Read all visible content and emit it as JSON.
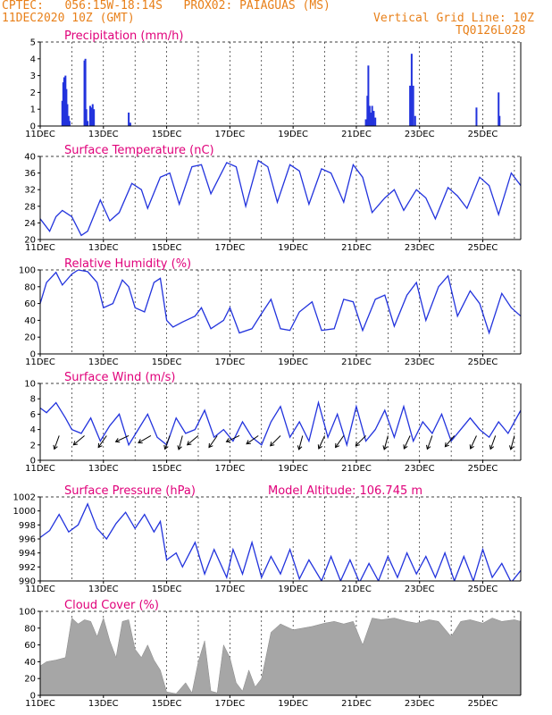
{
  "header": {
    "line1_left": "CPTEC:   056:15W-18:14S   PROX02: PAIAGUAS (MS)",
    "line2_left": "11DEC2020 10Z (GMT)",
    "line2_right": "Vertical Grid Line: 10Z",
    "line3_right": "TQ0126L028"
  },
  "colors": {
    "header": "#e8801a",
    "panel_title": "#e0007a",
    "series": "#2233dd",
    "wind_arrow": "#000000",
    "cloud": "#a6a6a6"
  },
  "chart_data": [
    {
      "type": "bar",
      "title": "Precipitation (mm/h)",
      "x_ticks": [
        "11DEC",
        "13DEC",
        "15DEC",
        "17DEC",
        "19DEC",
        "21DEC",
        "23DEC",
        "25DEC"
      ],
      "x_day_range": [
        11,
        26.2
      ],
      "ylim": [
        0,
        5
      ],
      "y_ticks": [
        0,
        1,
        2,
        3,
        4,
        5
      ],
      "points": [
        [
          11.7,
          1.5
        ],
        [
          11.73,
          2.6
        ],
        [
          11.76,
          2.9
        ],
        [
          11.8,
          3.0
        ],
        [
          11.83,
          2.2
        ],
        [
          11.86,
          1.3
        ],
        [
          11.9,
          0.6
        ],
        [
          11.93,
          0.3
        ],
        [
          12.4,
          3.9
        ],
        [
          12.43,
          4.0
        ],
        [
          12.46,
          1.0
        ],
        [
          12.5,
          0.3
        ],
        [
          12.58,
          1.2
        ],
        [
          12.62,
          1.1
        ],
        [
          12.66,
          1.3
        ],
        [
          12.7,
          1.0
        ],
        [
          13.8,
          0.8
        ],
        [
          13.85,
          0.2
        ],
        [
          21.3,
          0.4
        ],
        [
          21.35,
          1.8
        ],
        [
          21.38,
          3.6
        ],
        [
          21.42,
          1.2
        ],
        [
          21.46,
          0.8
        ],
        [
          21.5,
          1.2
        ],
        [
          21.55,
          0.9
        ],
        [
          21.6,
          0.5
        ],
        [
          22.7,
          2.4
        ],
        [
          22.75,
          4.3
        ],
        [
          22.8,
          2.4
        ],
        [
          22.86,
          0.6
        ],
        [
          24.8,
          1.1
        ],
        [
          25.5,
          2.0
        ],
        [
          25.53,
          0.6
        ]
      ]
    },
    {
      "type": "line",
      "title": "Surface Temperature (nC)",
      "ylim": [
        20,
        40
      ],
      "y_ticks": [
        20,
        24,
        28,
        32,
        36,
        40
      ],
      "points": [
        [
          11,
          25
        ],
        [
          11.3,
          22
        ],
        [
          11.5,
          25.5
        ],
        [
          11.7,
          27
        ],
        [
          12,
          25.5
        ],
        [
          12.3,
          21
        ],
        [
          12.5,
          22
        ],
        [
          12.9,
          29.5
        ],
        [
          13.2,
          24.5
        ],
        [
          13.5,
          26.5
        ],
        [
          13.9,
          33.5
        ],
        [
          14.2,
          32
        ],
        [
          14.4,
          27.5
        ],
        [
          14.8,
          35
        ],
        [
          15.1,
          36
        ],
        [
          15.4,
          28.5
        ],
        [
          15.8,
          37.5
        ],
        [
          16.1,
          38
        ],
        [
          16.4,
          31
        ],
        [
          16.9,
          38.5
        ],
        [
          17.2,
          37.5
        ],
        [
          17.5,
          28
        ],
        [
          17.9,
          39
        ],
        [
          18.2,
          37.5
        ],
        [
          18.5,
          29
        ],
        [
          18.9,
          38
        ],
        [
          19.2,
          36.5
        ],
        [
          19.5,
          28.5
        ],
        [
          19.9,
          37
        ],
        [
          20.2,
          36
        ],
        [
          20.6,
          29
        ],
        [
          20.9,
          38
        ],
        [
          21.2,
          35
        ],
        [
          21.5,
          26.5
        ],
        [
          21.9,
          30
        ],
        [
          22.2,
          32
        ],
        [
          22.5,
          27
        ],
        [
          22.9,
          32
        ],
        [
          23.2,
          30
        ],
        [
          23.5,
          25
        ],
        [
          23.9,
          32.5
        ],
        [
          24.2,
          30.5
        ],
        [
          24.5,
          27.5
        ],
        [
          24.9,
          35
        ],
        [
          25.2,
          33
        ],
        [
          25.5,
          26
        ],
        [
          25.9,
          36
        ],
        [
          26.2,
          33
        ]
      ]
    },
    {
      "type": "line",
      "title": "Relative Humidity (%)",
      "ylim": [
        0,
        100
      ],
      "y_ticks": [
        0,
        20,
        40,
        60,
        80,
        100
      ],
      "points": [
        [
          11,
          60
        ],
        [
          11.2,
          85
        ],
        [
          11.5,
          97
        ],
        [
          11.7,
          82
        ],
        [
          12,
          95
        ],
        [
          12.2,
          100
        ],
        [
          12.5,
          98
        ],
        [
          12.8,
          85
        ],
        [
          13,
          55
        ],
        [
          13.3,
          60
        ],
        [
          13.6,
          88
        ],
        [
          13.8,
          80
        ],
        [
          14,
          55
        ],
        [
          14.3,
          50
        ],
        [
          14.6,
          85
        ],
        [
          14.8,
          90
        ],
        [
          15,
          40
        ],
        [
          15.2,
          32
        ],
        [
          15.5,
          38
        ],
        [
          15.9,
          45
        ],
        [
          16.1,
          55
        ],
        [
          16.4,
          30
        ],
        [
          16.8,
          40
        ],
        [
          17,
          55
        ],
        [
          17.3,
          25
        ],
        [
          17.7,
          30
        ],
        [
          18,
          48
        ],
        [
          18.3,
          65
        ],
        [
          18.6,
          30
        ],
        [
          18.9,
          28
        ],
        [
          19.2,
          50
        ],
        [
          19.6,
          62
        ],
        [
          19.9,
          28
        ],
        [
          20.3,
          30
        ],
        [
          20.6,
          65
        ],
        [
          20.9,
          62
        ],
        [
          21.2,
          28
        ],
        [
          21.6,
          65
        ],
        [
          21.9,
          70
        ],
        [
          22.2,
          33
        ],
        [
          22.6,
          70
        ],
        [
          22.9,
          85
        ],
        [
          23.2,
          40
        ],
        [
          23.6,
          80
        ],
        [
          23.9,
          93
        ],
        [
          24.2,
          45
        ],
        [
          24.6,
          75
        ],
        [
          24.9,
          60
        ],
        [
          25.2,
          25
        ],
        [
          25.6,
          72
        ],
        [
          25.9,
          55
        ],
        [
          26.2,
          45
        ]
      ]
    },
    {
      "type": "line",
      "title": "Surface Wind (m/s)",
      "ylim": [
        0,
        10
      ],
      "y_ticks": [
        0,
        2,
        4,
        6,
        8,
        10
      ],
      "points": [
        [
          11,
          6.8
        ],
        [
          11.2,
          6.2
        ],
        [
          11.5,
          7.5
        ],
        [
          11.8,
          5.5
        ],
        [
          12,
          4
        ],
        [
          12.3,
          3.5
        ],
        [
          12.6,
          5.5
        ],
        [
          12.9,
          2.5
        ],
        [
          13.2,
          4.5
        ],
        [
          13.5,
          6
        ],
        [
          13.8,
          2
        ],
        [
          14.1,
          4
        ],
        [
          14.4,
          6
        ],
        [
          14.7,
          3
        ],
        [
          15,
          2
        ],
        [
          15.3,
          5.5
        ],
        [
          15.6,
          3.5
        ],
        [
          15.9,
          4
        ],
        [
          16.2,
          6.5
        ],
        [
          16.5,
          3
        ],
        [
          16.8,
          4
        ],
        [
          17.1,
          2.5
        ],
        [
          17.4,
          5
        ],
        [
          17.7,
          3
        ],
        [
          18,
          2
        ],
        [
          18.3,
          5
        ],
        [
          18.6,
          7
        ],
        [
          18.9,
          3
        ],
        [
          19.2,
          5
        ],
        [
          19.5,
          2.5
        ],
        [
          19.8,
          7.5
        ],
        [
          20.1,
          3
        ],
        [
          20.4,
          6
        ],
        [
          20.7,
          2
        ],
        [
          21,
          7
        ],
        [
          21.3,
          2.5
        ],
        [
          21.6,
          4
        ],
        [
          21.9,
          6.5
        ],
        [
          22.2,
          3
        ],
        [
          22.5,
          7
        ],
        [
          22.8,
          2.5
        ],
        [
          23.1,
          5
        ],
        [
          23.4,
          3.5
        ],
        [
          23.7,
          6
        ],
        [
          24,
          2.5
        ],
        [
          24.3,
          4
        ],
        [
          24.6,
          5.5
        ],
        [
          24.9,
          4
        ],
        [
          25.2,
          3
        ],
        [
          25.5,
          5
        ],
        [
          25.8,
          3.5
        ],
        [
          26.2,
          6.5
        ]
      ],
      "arrows": [
        [
          11.6,
          200
        ],
        [
          12.4,
          230
        ],
        [
          13.1,
          215
        ],
        [
          13.8,
          245
        ],
        [
          14.5,
          240
        ],
        [
          15.1,
          200
        ],
        [
          15.5,
          195
        ],
        [
          16.0,
          230
        ],
        [
          16.6,
          215
        ],
        [
          17.3,
          245
        ],
        [
          17.9,
          235
        ],
        [
          18.6,
          225
        ],
        [
          19.3,
          195
        ],
        [
          20.0,
          205
        ],
        [
          20.6,
          215
        ],
        [
          21.3,
          225
        ],
        [
          22.0,
          195
        ],
        [
          22.7,
          205
        ],
        [
          23.4,
          200
        ],
        [
          24.1,
          220
        ],
        [
          24.8,
          205
        ],
        [
          25.4,
          200
        ],
        [
          26.0,
          195
        ]
      ]
    },
    {
      "type": "line",
      "title": "Surface Pressure (hPa)",
      "annotation": "Model Altitude: 106.745 m",
      "ylim": [
        990,
        1002
      ],
      "y_ticks": [
        990,
        992,
        994,
        996,
        998,
        1000,
        1002
      ],
      "points": [
        [
          11,
          996.2
        ],
        [
          11.3,
          997.2
        ],
        [
          11.6,
          999.5
        ],
        [
          11.9,
          997
        ],
        [
          12.2,
          998
        ],
        [
          12.5,
          1001
        ],
        [
          12.8,
          997.5
        ],
        [
          13.1,
          996
        ],
        [
          13.4,
          998.2
        ],
        [
          13.7,
          999.8
        ],
        [
          14,
          997.5
        ],
        [
          14.3,
          999.5
        ],
        [
          14.6,
          997
        ],
        [
          14.8,
          998.5
        ],
        [
          15,
          993
        ],
        [
          15.3,
          994
        ],
        [
          15.5,
          992
        ],
        [
          15.9,
          995.5
        ],
        [
          16.2,
          991
        ],
        [
          16.5,
          994.5
        ],
        [
          16.9,
          990.5
        ],
        [
          17.1,
          994.5
        ],
        [
          17.4,
          991
        ],
        [
          17.7,
          995.5
        ],
        [
          18,
          990.5
        ],
        [
          18.3,
          993.5
        ],
        [
          18.6,
          991
        ],
        [
          18.9,
          994.5
        ],
        [
          19.2,
          990.3
        ],
        [
          19.5,
          993
        ],
        [
          19.9,
          990
        ],
        [
          20.2,
          993.5
        ],
        [
          20.5,
          990
        ],
        [
          20.8,
          993
        ],
        [
          21.1,
          989.8
        ],
        [
          21.4,
          992.5
        ],
        [
          21.7,
          990
        ],
        [
          22,
          993.5
        ],
        [
          22.3,
          990.5
        ],
        [
          22.6,
          994
        ],
        [
          22.9,
          991
        ],
        [
          23.2,
          993.5
        ],
        [
          23.5,
          990.5
        ],
        [
          23.8,
          994
        ],
        [
          24.1,
          990
        ],
        [
          24.4,
          993.5
        ],
        [
          24.7,
          990
        ],
        [
          25.0,
          994.5
        ],
        [
          25.3,
          990.5
        ],
        [
          25.6,
          992.5
        ],
        [
          25.9,
          989.8
        ],
        [
          26.2,
          991.5
        ]
      ]
    },
    {
      "type": "area",
      "title": "Cloud Cover (%)",
      "ylim": [
        0,
        100
      ],
      "y_ticks": [
        0,
        20,
        40,
        60,
        80,
        100
      ],
      "points": [
        [
          11,
          35
        ],
        [
          11.2,
          40
        ],
        [
          11.5,
          42
        ],
        [
          11.8,
          45
        ],
        [
          12,
          92
        ],
        [
          12.2,
          85
        ],
        [
          12.4,
          90
        ],
        [
          12.6,
          88
        ],
        [
          12.8,
          70
        ],
        [
          13,
          92
        ],
        [
          13.2,
          65
        ],
        [
          13.4,
          45
        ],
        [
          13.6,
          88
        ],
        [
          13.8,
          90
        ],
        [
          14,
          55
        ],
        [
          14.2,
          45
        ],
        [
          14.4,
          60
        ],
        [
          14.6,
          42
        ],
        [
          14.8,
          30
        ],
        [
          15,
          4
        ],
        [
          15.3,
          2
        ],
        [
          15.6,
          15
        ],
        [
          15.8,
          3
        ],
        [
          16,
          40
        ],
        [
          16.2,
          65
        ],
        [
          16.4,
          5
        ],
        [
          16.6,
          3
        ],
        [
          16.8,
          60
        ],
        [
          17,
          45
        ],
        [
          17.2,
          15
        ],
        [
          17.4,
          5
        ],
        [
          17.6,
          30
        ],
        [
          17.8,
          10
        ],
        [
          18,
          20
        ],
        [
          18.3,
          75
        ],
        [
          18.6,
          85
        ],
        [
          19,
          78
        ],
        [
          19.3,
          80
        ],
        [
          19.6,
          82
        ],
        [
          20,
          86
        ],
        [
          20.3,
          88
        ],
        [
          20.6,
          85
        ],
        [
          20.9,
          88
        ],
        [
          21.2,
          60
        ],
        [
          21.5,
          92
        ],
        [
          21.8,
          90
        ],
        [
          22.2,
          92
        ],
        [
          22.6,
          88
        ],
        [
          22.9,
          86
        ],
        [
          23.3,
          90
        ],
        [
          23.6,
          88
        ],
        [
          24,
          70
        ],
        [
          24.3,
          88
        ],
        [
          24.6,
          90
        ],
        [
          25,
          86
        ],
        [
          25.3,
          92
        ],
        [
          25.6,
          88
        ],
        [
          26,
          90
        ],
        [
          26.2,
          88
        ]
      ]
    }
  ]
}
